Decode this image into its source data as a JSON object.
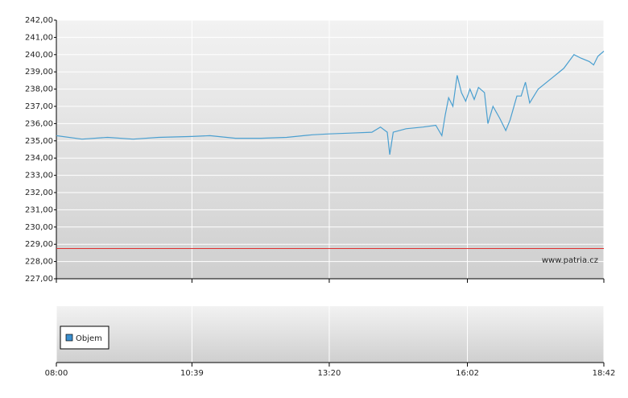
{
  "chart_data": {
    "type": "line",
    "x": [
      "08:00",
      "08:30",
      "09:00",
      "09:30",
      "10:00",
      "10:39",
      "11:00",
      "11:30",
      "12:00",
      "12:30",
      "13:00",
      "13:20",
      "13:45",
      "14:10",
      "14:20",
      "14:28",
      "14:31",
      "14:35",
      "14:50",
      "15:10",
      "15:25",
      "15:32",
      "15:36",
      "15:40",
      "15:45",
      "15:50",
      "15:55",
      "16:00",
      "16:05",
      "16:10",
      "16:15",
      "16:22",
      "16:26",
      "16:32",
      "16:40",
      "16:47",
      "16:52",
      "17:00",
      "17:05",
      "17:10",
      "17:15",
      "17:25",
      "17:40",
      "17:55",
      "18:07",
      "18:15",
      "18:25",
      "18:30",
      "18:35",
      "18:42"
    ],
    "series": [
      {
        "color": "#4a9fd0",
        "values": [
          235.3,
          235.1,
          235.2,
          235.1,
          235.2,
          235.25,
          235.3,
          235.15,
          235.15,
          235.2,
          235.35,
          235.4,
          235.45,
          235.5,
          235.8,
          235.5,
          234.2,
          235.5,
          235.7,
          235.8,
          235.9,
          235.3,
          236.5,
          237.5,
          237.0,
          238.8,
          237.8,
          237.3,
          238.0,
          237.4,
          238.1,
          237.8,
          236.0,
          237.0,
          236.3,
          235.6,
          236.2,
          237.6,
          237.6,
          238.4,
          237.2,
          238.0,
          238.6,
          239.2,
          240.0,
          239.8,
          239.6,
          239.4,
          239.9,
          240.2
        ]
      }
    ],
    "reference_line": {
      "value": 228.75,
      "color": "#e03030"
    },
    "xlim": [
      "08:00",
      "18:42"
    ],
    "xticks": [
      "08:00",
      "10:39",
      "13:20",
      "16:02",
      "18:42"
    ],
    "ylim": [
      227,
      242
    ],
    "yticks": [
      {
        "value": 227,
        "label": "227,00"
      },
      {
        "value": 228,
        "label": "228,00"
      },
      {
        "value": 229,
        "label": "229,00"
      },
      {
        "value": 230,
        "label": "230,00"
      },
      {
        "value": 231,
        "label": "231,00"
      },
      {
        "value": 232,
        "label": "232,00"
      },
      {
        "value": 233,
        "label": "233,00"
      },
      {
        "value": 234,
        "label": "234,00"
      },
      {
        "value": 235,
        "label": "235,00"
      },
      {
        "value": 236,
        "label": "236,00"
      },
      {
        "value": 237,
        "label": "237,00"
      },
      {
        "value": 238,
        "label": "238,00"
      },
      {
        "value": 239,
        "label": "239,00"
      },
      {
        "value": 240,
        "label": "240,00"
      },
      {
        "value": 241,
        "label": "241,00"
      },
      {
        "value": 242,
        "label": "242,00"
      }
    ],
    "grid": true,
    "watermark": "www.patria.cz",
    "volume_legend": "Objem",
    "volume_color": "#3a8fcf"
  }
}
